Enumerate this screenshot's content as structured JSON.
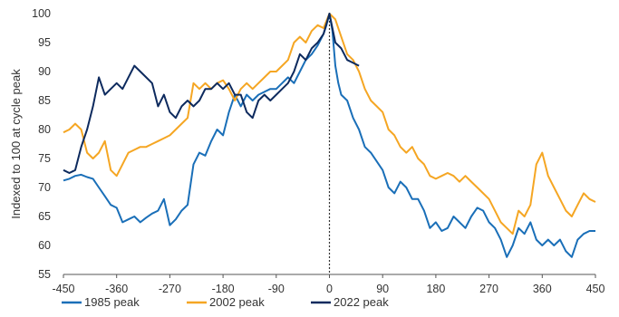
{
  "chart_data": {
    "type": "line",
    "ylabel": "Indexed to 100 at cycle peak",
    "xlim": [
      -450,
      450
    ],
    "ylim": [
      55,
      100
    ],
    "xticks": [
      -450,
      -360,
      -270,
      -180,
      -90,
      0,
      90,
      180,
      270,
      360,
      450
    ],
    "yticks": [
      55,
      60,
      65,
      70,
      75,
      80,
      85,
      90,
      95,
      100
    ],
    "peak_marker_x": 0,
    "legend_position": "bottom",
    "series": [
      {
        "name": "1985 peak",
        "color": "#1a6fb8",
        "points": [
          [
            -450,
            71.2
          ],
          [
            -440,
            71.5
          ],
          [
            -430,
            72
          ],
          [
            -420,
            72.2
          ],
          [
            -410,
            71.8
          ],
          [
            -400,
            71.5
          ],
          [
            -390,
            70
          ],
          [
            -380,
            68.5
          ],
          [
            -370,
            67
          ],
          [
            -360,
            66.5
          ],
          [
            -350,
            64
          ],
          [
            -340,
            64.5
          ],
          [
            -330,
            65
          ],
          [
            -320,
            64
          ],
          [
            -310,
            64.8
          ],
          [
            -300,
            65.5
          ],
          [
            -290,
            66
          ],
          [
            -280,
            68
          ],
          [
            -270,
            63.5
          ],
          [
            -260,
            64.5
          ],
          [
            -250,
            66
          ],
          [
            -240,
            67
          ],
          [
            -230,
            74
          ],
          [
            -220,
            76
          ],
          [
            -210,
            75.5
          ],
          [
            -200,
            78
          ],
          [
            -190,
            80
          ],
          [
            -180,
            79
          ],
          [
            -170,
            83
          ],
          [
            -160,
            86
          ],
          [
            -150,
            84
          ],
          [
            -140,
            86
          ],
          [
            -130,
            85
          ],
          [
            -120,
            86
          ],
          [
            -110,
            86.5
          ],
          [
            -100,
            87
          ],
          [
            -90,
            87
          ],
          [
            -80,
            88
          ],
          [
            -70,
            89
          ],
          [
            -60,
            88
          ],
          [
            -50,
            90
          ],
          [
            -40,
            92
          ],
          [
            -30,
            93
          ],
          [
            -20,
            94.5
          ],
          [
            -10,
            96.5
          ],
          [
            -5,
            98
          ],
          [
            0,
            100
          ],
          [
            5,
            97
          ],
          [
            10,
            91
          ],
          [
            15,
            88
          ],
          [
            20,
            86
          ],
          [
            30,
            85
          ],
          [
            40,
            82
          ],
          [
            50,
            80
          ],
          [
            60,
            77
          ],
          [
            70,
            76
          ],
          [
            80,
            74.5
          ],
          [
            90,
            73
          ],
          [
            100,
            70
          ],
          [
            110,
            69
          ],
          [
            120,
            71
          ],
          [
            130,
            70
          ],
          [
            140,
            68
          ],
          [
            150,
            68
          ],
          [
            160,
            66
          ],
          [
            170,
            63
          ],
          [
            180,
            64
          ],
          [
            190,
            62.5
          ],
          [
            200,
            63
          ],
          [
            210,
            65
          ],
          [
            220,
            64
          ],
          [
            230,
            63
          ],
          [
            240,
            65
          ],
          [
            250,
            66.5
          ],
          [
            260,
            66
          ],
          [
            270,
            64
          ],
          [
            280,
            63
          ],
          [
            290,
            61
          ],
          [
            300,
            58
          ],
          [
            310,
            60
          ],
          [
            320,
            63
          ],
          [
            330,
            62
          ],
          [
            340,
            64
          ],
          [
            350,
            61
          ],
          [
            360,
            60
          ],
          [
            370,
            61
          ],
          [
            380,
            60
          ],
          [
            390,
            61
          ],
          [
            400,
            59
          ],
          [
            410,
            58
          ],
          [
            420,
            61
          ],
          [
            430,
            62
          ],
          [
            440,
            62.5
          ],
          [
            450,
            62.5
          ]
        ]
      },
      {
        "name": "2002 peak",
        "color": "#f5a623",
        "points": [
          [
            -450,
            79.5
          ],
          [
            -440,
            80
          ],
          [
            -430,
            81
          ],
          [
            -420,
            80
          ],
          [
            -410,
            76
          ],
          [
            -400,
            75
          ],
          [
            -390,
            76
          ],
          [
            -380,
            78
          ],
          [
            -370,
            73
          ],
          [
            -360,
            72
          ],
          [
            -350,
            74
          ],
          [
            -340,
            76
          ],
          [
            -330,
            76.5
          ],
          [
            -320,
            77
          ],
          [
            -310,
            77
          ],
          [
            -300,
            77.5
          ],
          [
            -290,
            78
          ],
          [
            -280,
            78.5
          ],
          [
            -270,
            79
          ],
          [
            -260,
            80
          ],
          [
            -250,
            81
          ],
          [
            -240,
            82
          ],
          [
            -230,
            88
          ],
          [
            -220,
            87
          ],
          [
            -210,
            88
          ],
          [
            -200,
            87
          ],
          [
            -190,
            88
          ],
          [
            -180,
            88.5
          ],
          [
            -170,
            87
          ],
          [
            -160,
            85
          ],
          [
            -150,
            87
          ],
          [
            -140,
            88
          ],
          [
            -130,
            87
          ],
          [
            -120,
            88
          ],
          [
            -110,
            89
          ],
          [
            -100,
            90
          ],
          [
            -90,
            90
          ],
          [
            -80,
            91
          ],
          [
            -70,
            92
          ],
          [
            -60,
            95
          ],
          [
            -50,
            96
          ],
          [
            -40,
            95
          ],
          [
            -30,
            97
          ],
          [
            -20,
            98
          ],
          [
            -10,
            97.5
          ],
          [
            0,
            100
          ],
          [
            10,
            99
          ],
          [
            20,
            96
          ],
          [
            30,
            93
          ],
          [
            40,
            92
          ],
          [
            50,
            90
          ],
          [
            60,
            87
          ],
          [
            70,
            85
          ],
          [
            80,
            84
          ],
          [
            90,
            83
          ],
          [
            100,
            80
          ],
          [
            110,
            79
          ],
          [
            120,
            77
          ],
          [
            130,
            76
          ],
          [
            140,
            77
          ],
          [
            150,
            75
          ],
          [
            160,
            74
          ],
          [
            170,
            72
          ],
          [
            180,
            71.5
          ],
          [
            190,
            72
          ],
          [
            200,
            72.5
          ],
          [
            210,
            72
          ],
          [
            220,
            71
          ],
          [
            230,
            72
          ],
          [
            240,
            71
          ],
          [
            250,
            70
          ],
          [
            260,
            69
          ],
          [
            270,
            68
          ],
          [
            280,
            66
          ],
          [
            290,
            64
          ],
          [
            300,
            63
          ],
          [
            310,
            62
          ],
          [
            320,
            66
          ],
          [
            330,
            65
          ],
          [
            340,
            67
          ],
          [
            350,
            74
          ],
          [
            360,
            76
          ],
          [
            370,
            72
          ],
          [
            380,
            70
          ],
          [
            390,
            68
          ],
          [
            400,
            66
          ],
          [
            410,
            65
          ],
          [
            420,
            67
          ],
          [
            430,
            69
          ],
          [
            440,
            68
          ],
          [
            450,
            67.5
          ]
        ]
      },
      {
        "name": "2022 peak",
        "color": "#0d2a5e",
        "points": [
          [
            -450,
            73
          ],
          [
            -440,
            72.5
          ],
          [
            -430,
            73
          ],
          [
            -420,
            77
          ],
          [
            -410,
            80
          ],
          [
            -400,
            84
          ],
          [
            -390,
            89
          ],
          [
            -380,
            86
          ],
          [
            -370,
            87
          ],
          [
            -360,
            88
          ],
          [
            -350,
            87
          ],
          [
            -340,
            89
          ],
          [
            -330,
            91
          ],
          [
            -320,
            90
          ],
          [
            -310,
            89
          ],
          [
            -300,
            88
          ],
          [
            -290,
            84
          ],
          [
            -280,
            86
          ],
          [
            -270,
            83
          ],
          [
            -260,
            82
          ],
          [
            -250,
            84
          ],
          [
            -240,
            85
          ],
          [
            -230,
            84
          ],
          [
            -220,
            85
          ],
          [
            -210,
            87
          ],
          [
            -200,
            87
          ],
          [
            -190,
            88
          ],
          [
            -180,
            87
          ],
          [
            -170,
            88
          ],
          [
            -160,
            86
          ],
          [
            -150,
            86
          ],
          [
            -140,
            83
          ],
          [
            -130,
            82
          ],
          [
            -120,
            85
          ],
          [
            -110,
            86
          ],
          [
            -100,
            85
          ],
          [
            -90,
            86
          ],
          [
            -80,
            87
          ],
          [
            -70,
            88
          ],
          [
            -60,
            90
          ],
          [
            -50,
            93
          ],
          [
            -40,
            92
          ],
          [
            -30,
            94
          ],
          [
            -20,
            95
          ],
          [
            -10,
            96.5
          ],
          [
            0,
            100
          ],
          [
            10,
            95
          ],
          [
            20,
            94
          ],
          [
            30,
            92
          ],
          [
            40,
            91.5
          ],
          [
            50,
            91
          ]
        ]
      }
    ]
  }
}
